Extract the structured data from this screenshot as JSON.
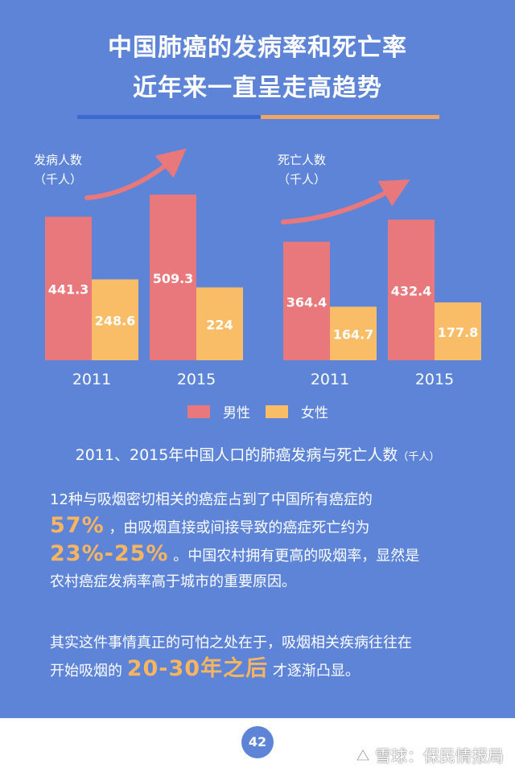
{
  "header": {
    "title_line1": "中国肺癌的发病率和死亡率",
    "title_line2": "近年来一直呈走高趋势"
  },
  "colors": {
    "background": "#5d84d6",
    "male": "#e8787c",
    "female": "#f8bd66",
    "highlight": "#f7b562"
  },
  "chart_data": [
    {
      "type": "bar",
      "ylabel": "发病人数",
      "unit": "（千人）",
      "categories": [
        "2011",
        "2015"
      ],
      "series": [
        {
          "name": "男性",
          "values": [
            441.3,
            509.3
          ],
          "labels": [
            "441.3",
            "509.3"
          ]
        },
        {
          "name": "女性",
          "values": [
            248.6,
            224
          ],
          "labels": [
            "248.6",
            "224"
          ]
        }
      ],
      "trend_arrow": "up"
    },
    {
      "type": "bar",
      "ylabel": "死亡人数",
      "unit": "（千人）",
      "categories": [
        "2011",
        "2015"
      ],
      "series": [
        {
          "name": "男性",
          "values": [
            364.4,
            432.4
          ],
          "labels": [
            "364.4",
            "432.4"
          ]
        },
        {
          "name": "女性",
          "values": [
            164.7,
            177.8
          ],
          "labels": [
            "164.7",
            "177.8"
          ]
        }
      ],
      "trend_arrow": "up"
    }
  ],
  "legend": {
    "male_label": "男性",
    "female_label": "女性"
  },
  "caption": {
    "main": "2011、2015年中国人口的肺癌发病与死亡人数",
    "unit": "（千人）"
  },
  "paragraph1": {
    "line1": "12种与吸烟密切相关的癌症占到了中国所有癌症的",
    "pct1": "57%",
    "line2_rest": "，由吸烟直接或间接导致的癌症死亡约为",
    "pct2": "23%-25%",
    "line3_rest": "。中国农村拥有更高的吸烟率，显然是",
    "line4": "农村癌症发病率高于城市的重要原因。"
  },
  "paragraph2": {
    "line1": "其实这件事情真正的可怕之处在于，吸烟相关疾病往往在",
    "line2_start": "开始吸烟的",
    "highlight": "20-30年之后",
    "line2_end": "才逐渐凸显。"
  },
  "footer": {
    "page_number": "42",
    "watermark": "雪球：保民情报局"
  }
}
